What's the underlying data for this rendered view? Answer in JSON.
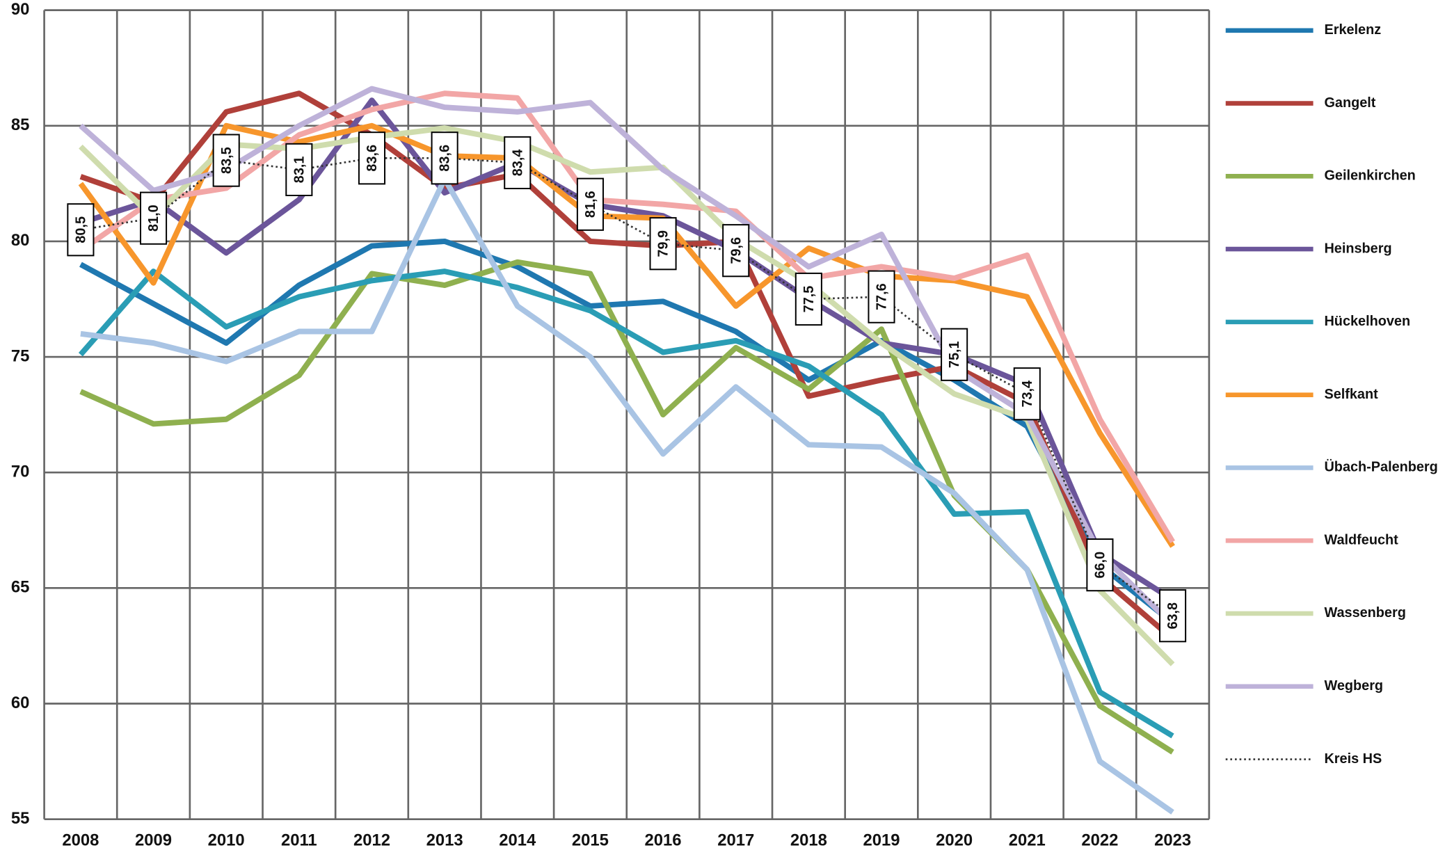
{
  "chart_data": {
    "type": "line",
    "categories": [
      "2008",
      "2009",
      "2010",
      "2011",
      "2012",
      "2013",
      "2014",
      "2015",
      "2016",
      "2017",
      "2018",
      "2019",
      "2020",
      "2021",
      "2022",
      "2023"
    ],
    "ylim": [
      55,
      90
    ],
    "yticks": [
      55,
      60,
      65,
      70,
      75,
      80,
      85,
      90
    ],
    "grid": true,
    "legend": "right",
    "series": [
      {
        "name": "Erkelenz",
        "color": "#1f78b0",
        "values": [
          79.0,
          77.3,
          75.6,
          78.1,
          79.8,
          80.0,
          78.9,
          77.2,
          77.4,
          76.1,
          74.0,
          75.7,
          74.0,
          72.0,
          66.0,
          63.5
        ]
      },
      {
        "name": "Gangelt",
        "color": "#b0403a",
        "values": [
          82.8,
          81.7,
          85.6,
          86.4,
          84.6,
          82.3,
          82.9,
          80.0,
          79.8,
          80.0,
          73.3,
          74.0,
          74.6,
          73.0,
          65.5,
          62.8
        ]
      },
      {
        "name": "Geilenkirchen",
        "color": "#8fb04f",
        "values": [
          73.5,
          72.1,
          72.3,
          74.2,
          78.6,
          78.1,
          79.1,
          78.6,
          72.5,
          75.4,
          73.6,
          76.2,
          69.0,
          65.8,
          59.9,
          57.9
        ]
      },
      {
        "name": "Heinsberg",
        "color": "#6b559a",
        "values": [
          80.8,
          81.8,
          79.5,
          81.8,
          86.1,
          82.1,
          83.4,
          81.6,
          81.1,
          79.6,
          77.5,
          75.6,
          75.1,
          73.8,
          66.5,
          64.5
        ]
      },
      {
        "name": "Hückelhoven",
        "color": "#2a9db5",
        "values": [
          75.1,
          78.7,
          76.3,
          77.6,
          78.3,
          78.7,
          78.0,
          77.0,
          75.2,
          75.7,
          74.6,
          72.5,
          68.2,
          68.3,
          60.5,
          58.6
        ]
      },
      {
        "name": "Selfkant",
        "color": "#f7962c",
        "values": [
          82.5,
          78.2,
          85.0,
          84.3,
          85.0,
          83.7,
          83.6,
          81.1,
          81.0,
          77.2,
          79.7,
          78.5,
          78.3,
          77.6,
          71.7,
          66.8
        ]
      },
      {
        "name": "Übach-Palenberg",
        "color": "#a9c4e4",
        "values": [
          76.0,
          75.6,
          74.8,
          76.1,
          76.1,
          82.7,
          77.2,
          75.0,
          70.8,
          73.7,
          71.2,
          71.1,
          69.1,
          65.8,
          57.5,
          55.3
        ]
      },
      {
        "name": "Waldfeucht",
        "color": "#f2a6a6",
        "values": [
          79.6,
          81.8,
          82.3,
          84.6,
          85.7,
          86.4,
          86.2,
          81.8,
          81.6,
          81.3,
          78.4,
          78.9,
          78.4,
          79.4,
          72.3,
          67.0
        ]
      },
      {
        "name": "Wassenberg",
        "color": "#cfdcad",
        "values": [
          84.1,
          81.0,
          84.2,
          84.0,
          84.5,
          84.9,
          84.3,
          83.0,
          83.2,
          80.1,
          78.2,
          75.6,
          73.4,
          72.3,
          64.9,
          61.7
        ]
      },
      {
        "name": "Wegberg",
        "color": "#beb2d9",
        "values": [
          85.0,
          82.2,
          83.1,
          85.0,
          86.6,
          85.8,
          85.6,
          86.0,
          83.1,
          81.1,
          78.9,
          80.3,
          74.5,
          72.5,
          66.5,
          63.4
        ]
      },
      {
        "name": "Kreis HS",
        "color": "#333333",
        "linestyle": "dotted",
        "values": [
          80.5,
          81.0,
          83.5,
          83.1,
          83.6,
          83.6,
          83.4,
          81.6,
          79.9,
          79.6,
          77.5,
          77.6,
          75.1,
          73.4,
          66.0,
          63.8
        ],
        "value_labels": [
          "80,5",
          "81,0",
          "83,5",
          "83,1",
          "83,6",
          "83,6",
          "83,4",
          "81,6",
          "79,9",
          "79,6",
          "77,5",
          "77,6",
          "75,1",
          "73,4",
          "66,0",
          "63,8"
        ]
      }
    ]
  }
}
